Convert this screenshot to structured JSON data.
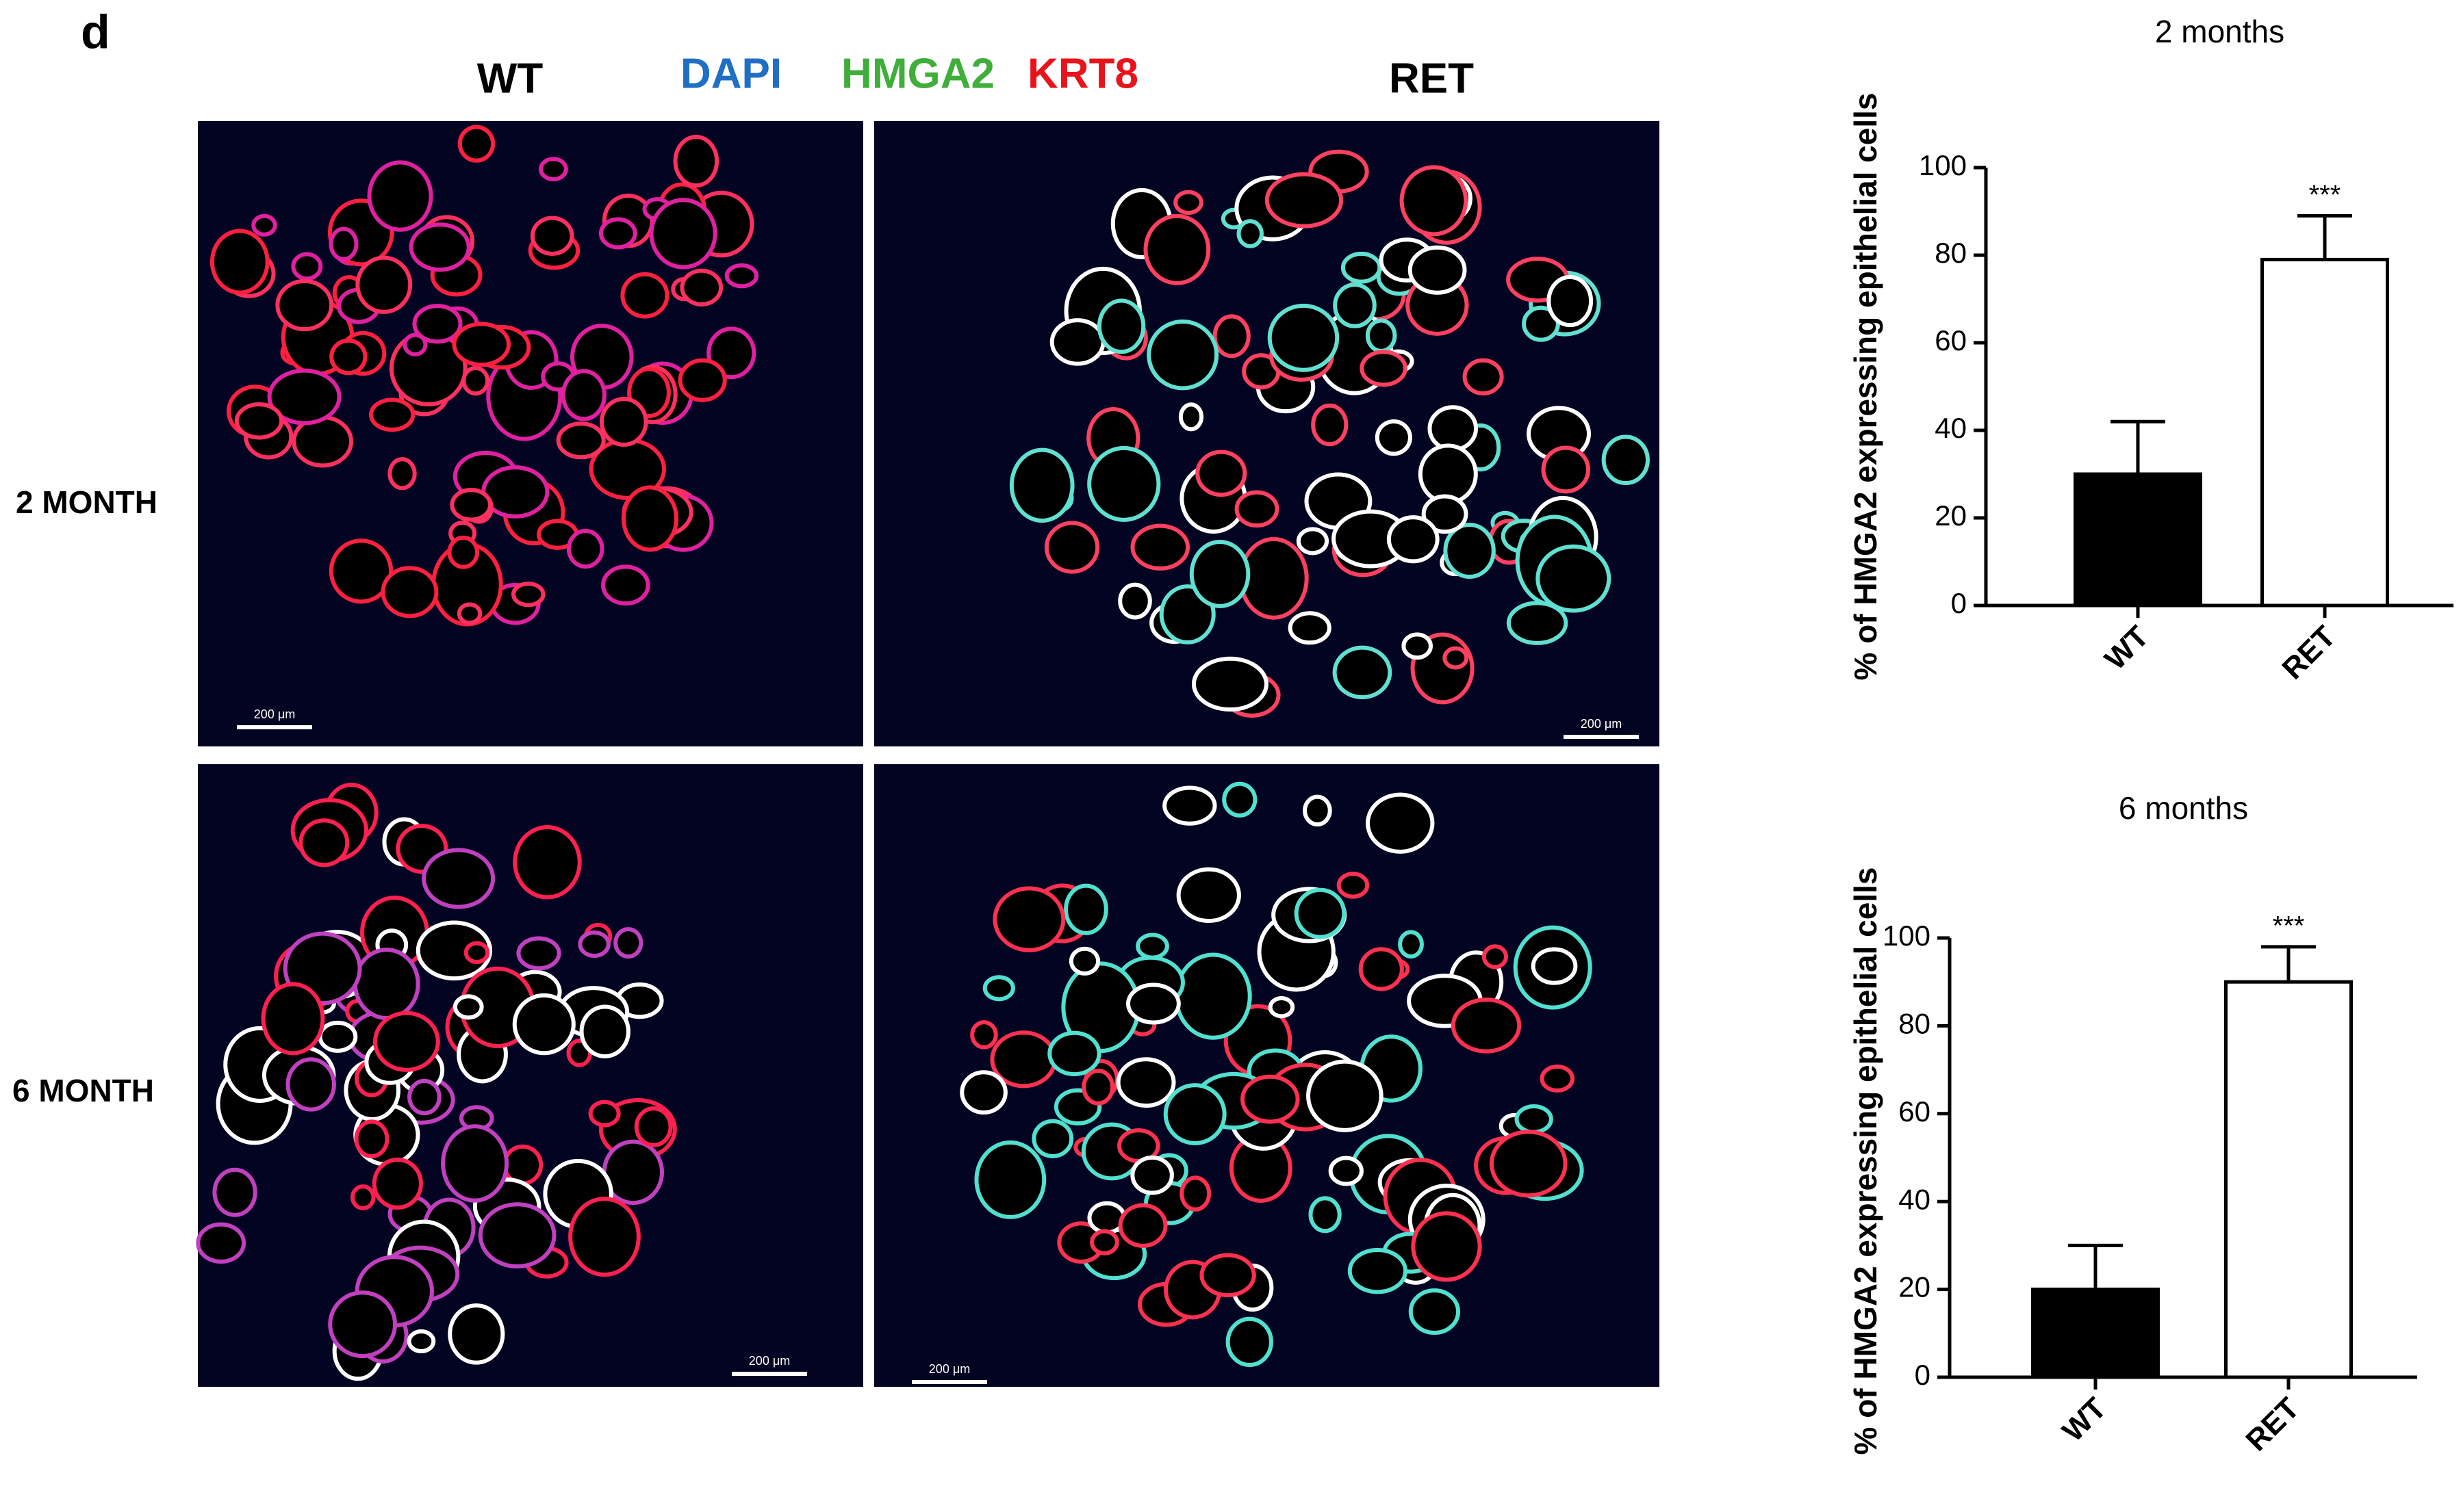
{
  "panel": {
    "label": "d",
    "columns": [
      "WT",
      "RET"
    ],
    "stains": [
      {
        "text": "DAPI",
        "color": "#1f6fc4"
      },
      {
        "text": "HMGA2",
        "color": "#3fae3a"
      },
      {
        "text": "KRT8",
        "color": "#e8141b"
      }
    ],
    "rows": [
      "2 MONTH",
      "6 MONTH"
    ],
    "scale_bar_labels": [
      "200 μm",
      "200 μm",
      "200 μm",
      "200 μm"
    ]
  },
  "chart_data": [
    {
      "type": "bar",
      "title": "2 months",
      "y_label": "% of HMGA2 expressing epithelial cells",
      "categories": [
        "WT",
        "RET"
      ],
      "values": [
        30,
        79
      ],
      "errors": [
        12,
        10
      ],
      "colors": [
        "#000000",
        "#ffffff"
      ],
      "annotations": [
        null,
        "***"
      ],
      "ylim": [
        0,
        100
      ],
      "yticks": [
        0,
        20,
        40,
        60,
        80,
        100
      ]
    },
    {
      "type": "bar",
      "title": "6 months",
      "y_label": "% of HMGA2 expressing epithelial cells",
      "categories": [
        "WT",
        "RET"
      ],
      "values": [
        20,
        90
      ],
      "errors": [
        10,
        8
      ],
      "colors": [
        "#000000",
        "#ffffff"
      ],
      "annotations": [
        null,
        "***"
      ],
      "ylim": [
        0,
        100
      ],
      "yticks": [
        0,
        20,
        40,
        60,
        80,
        100
      ]
    }
  ]
}
